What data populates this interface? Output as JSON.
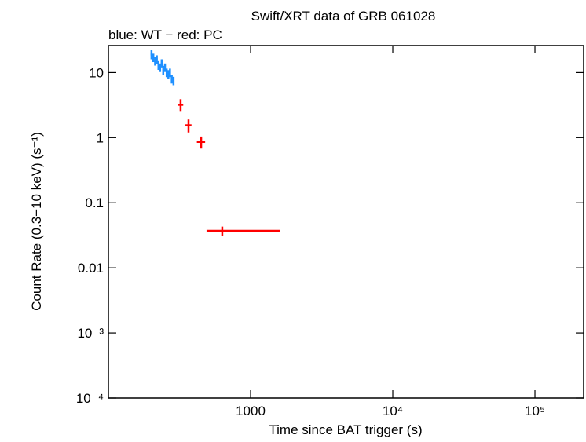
{
  "chart_data": {
    "type": "errorbar-scatter",
    "title": "Swift/XRT data of GRB 061028",
    "subtitle": "blue: WT − red: PC",
    "x_label": "Time since BAT trigger (s)",
    "y_label": "Count Rate (0.3−10 keV) (s⁻¹)",
    "x_log": true,
    "y_log": true,
    "xlim": [
      100,
      220000
    ],
    "ylim": [
      0.0001,
      26
    ],
    "xticks": [
      1000,
      {
        "value": 10000,
        "label": "10⁴"
      },
      {
        "value": 100000,
        "label": "10⁵"
      }
    ],
    "yticks": [
      {
        "value": 0.0001,
        "label": "10⁻⁴"
      },
      {
        "value": 0.001,
        "label": "10⁻³"
      },
      0.01,
      0.1,
      1,
      10
    ],
    "series": [
      {
        "name": "WT",
        "color": "#1e90ff",
        "x": [
          201,
          207,
          213,
          219,
          225,
          231,
          237,
          243,
          250,
          257,
          264,
          271,
          279,
          287
        ],
        "values": [
          19,
          17,
          15,
          16,
          13,
          12,
          14,
          11,
          12,
          10,
          9.5,
          10,
          8,
          7.5
        ],
        "xerr_minus": [
          3,
          3,
          3,
          3,
          3,
          3,
          3,
          3,
          3,
          3,
          3,
          3,
          3,
          3
        ],
        "xerr_plus": [
          3,
          3,
          3,
          3,
          3,
          3,
          3,
          3,
          3,
          3,
          3,
          3,
          3,
          3
        ],
        "yerr": [
          3,
          2.5,
          2.2,
          2.4,
          2,
          1.8,
          2,
          1.7,
          1.8,
          1.5,
          1.4,
          1.5,
          1.2,
          1.1
        ]
      },
      {
        "name": "PC",
        "color": "#ff0000",
        "x": [
          322,
          366,
          449,
          632
        ],
        "values": [
          3.2,
          1.55,
          0.86,
          0.037
        ],
        "xerr_minus": [
          14,
          18,
          30,
          142
        ],
        "xerr_plus": [
          14,
          18,
          30,
          988
        ],
        "yerr": [
          0.7,
          0.35,
          0.18,
          0.006
        ]
      }
    ]
  }
}
